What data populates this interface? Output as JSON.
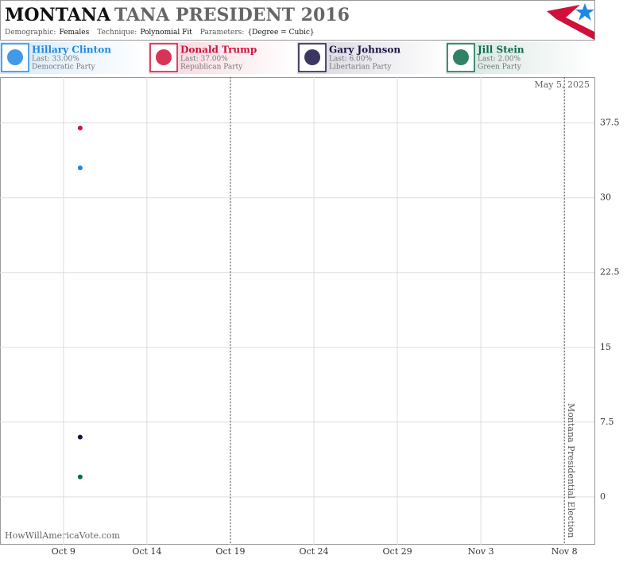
{
  "chart_data": {
    "type": "scatter",
    "title": "MONTANA",
    "subtitle": "TANA PRESIDENT 2016",
    "meta": [
      {
        "label": "Demographic:",
        "value": "Females"
      },
      {
        "label": "Technique:",
        "value": "Polynomial Fit"
      },
      {
        "label": "Parameters:",
        "value": "{Degree = Cubic}"
      }
    ],
    "x": [
      1
    ],
    "series": [
      {
        "name": "Hillary Clinton",
        "color": "#1e88e5",
        "values": [
          33
        ],
        "last_label": "Last: 33.00%",
        "party": "Democratic Party"
      },
      {
        "name": "Donald Trump",
        "color": "#d0103a",
        "values": [
          37
        ],
        "last_label": "Last: 37.00%",
        "party": "Republican Party"
      },
      {
        "name": "Gary Johnson",
        "color": "#1a1446",
        "values": [
          6
        ],
        "last_label": "Last: 6.00%",
        "party": "Libertarian Party"
      },
      {
        "name": "Jill Stein",
        "color": "#0d6b4a",
        "values": [
          2
        ],
        "last_label": "Last: 2.00%",
        "party": "Green Party"
      }
    ],
    "xlim": [
      -3.8,
      31.8
    ],
    "xticks": [
      {
        "value": 0,
        "label": "Oct 9"
      },
      {
        "value": 5,
        "label": "Oct 14"
      },
      {
        "value": 10,
        "label": "Oct 19"
      },
      {
        "value": 15,
        "label": "Oct 24"
      },
      {
        "value": 20,
        "label": "Oct 29"
      },
      {
        "value": 25,
        "label": "Nov 3"
      },
      {
        "value": 30,
        "label": "Nov 8"
      }
    ],
    "ylim": [
      -4.8,
      42.1
    ],
    "yticks": [
      0,
      7.5,
      15,
      22.5,
      30,
      37.5
    ],
    "grid": true,
    "vlines": [
      10,
      30
    ],
    "election_label": "Montana Presidential Election",
    "date_stamp": "May 5, 2025",
    "watermark": "HowWillAmericaVote.com"
  }
}
